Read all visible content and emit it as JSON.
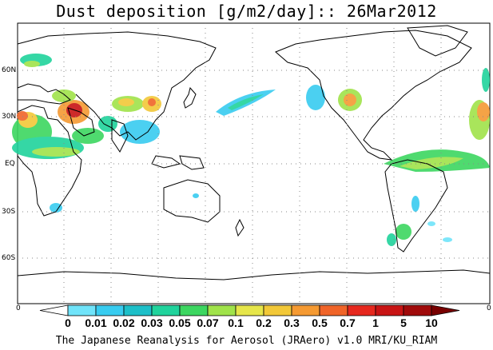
{
  "title": "Dust deposition [g/m2/day]:: 26Mar2012",
  "latitude_labels": [
    "60N",
    "30N",
    "EQ",
    "30S",
    "60S"
  ],
  "corner_labels": [
    "0",
    "0"
  ],
  "colorbar": {
    "labels": [
      "0",
      "0.01",
      "0.02",
      "0.03",
      "0.05",
      "0.07",
      "0.1",
      "0.2",
      "0.3",
      "0.5",
      "0.7",
      "1",
      "5",
      "10"
    ],
    "colors": [
      "#ffffff",
      "#70e4fa",
      "#38ccf0",
      "#1dbfc8",
      "#20d39c",
      "#3cd660",
      "#a0e34a",
      "#e6e64a",
      "#f2c838",
      "#f59a32",
      "#f06428",
      "#e6281e",
      "#c81414",
      "#a00a0a",
      "#780000"
    ]
  },
  "credit": "The Japanese Reanalysis for Aerosol (JRAero) v1.0 MRI/KU_RIAM"
}
